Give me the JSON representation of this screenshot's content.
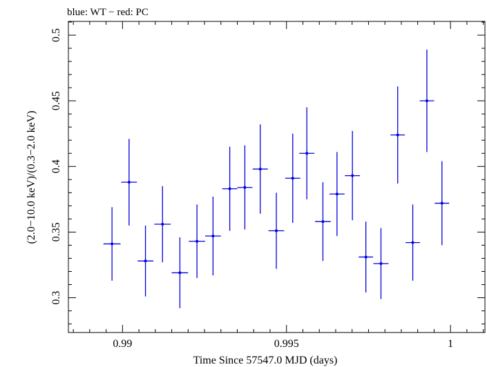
{
  "chart_data": {
    "type": "scatter",
    "title": "blue: WT − red: PC",
    "xlabel": "Time Since 57547.0 MJD (days)",
    "ylabel": "(2.0−10.0 keV)/(0.3−2.0 keV)",
    "xlim": [
      0.98835,
      1.00105
    ],
    "ylim": [
      0.2735,
      0.5105
    ],
    "x_ticks": [
      0.99,
      0.995,
      1
    ],
    "x_tick_labels": [
      "0.99",
      "0.995",
      "1"
    ],
    "y_ticks": [
      0.3,
      0.35,
      0.4,
      0.45,
      0.5
    ],
    "y_tick_labels": [
      "0.3",
      "0.35",
      "0.4",
      "0.45",
      "0.5"
    ],
    "grid": false,
    "series": [
      {
        "name": "WT",
        "color": "#0000dd",
        "points": [
          {
            "x": 0.98968,
            "xerr": 0.00026,
            "y": 0.341,
            "yerr": 0.028
          },
          {
            "x": 0.9902,
            "xerr": 0.00024,
            "y": 0.388,
            "yerr": 0.033
          },
          {
            "x": 0.9907,
            "xerr": 0.00024,
            "y": 0.328,
            "yerr": 0.027
          },
          {
            "x": 0.99122,
            "xerr": 0.00025,
            "y": 0.356,
            "yerr": 0.029
          },
          {
            "x": 0.99175,
            "xerr": 0.00025,
            "y": 0.319,
            "yerr": 0.027
          },
          {
            "x": 0.99227,
            "xerr": 0.00025,
            "y": 0.343,
            "yerr": 0.028
          },
          {
            "x": 0.99276,
            "xerr": 0.00024,
            "y": 0.347,
            "yerr": 0.03
          },
          {
            "x": 0.99327,
            "xerr": 0.00023,
            "y": 0.383,
            "yerr": 0.032
          },
          {
            "x": 0.99373,
            "xerr": 0.00023,
            "y": 0.384,
            "yerr": 0.032
          },
          {
            "x": 0.9942,
            "xerr": 0.00023,
            "y": 0.398,
            "yerr": 0.034
          },
          {
            "x": 0.99469,
            "xerr": 0.00024,
            "y": 0.351,
            "yerr": 0.029
          },
          {
            "x": 0.99519,
            "xerr": 0.00023,
            "y": 0.391,
            "yerr": 0.034
          },
          {
            "x": 0.99562,
            "xerr": 0.00023,
            "y": 0.41,
            "yerr": 0.035
          },
          {
            "x": 0.99611,
            "xerr": 0.00024,
            "y": 0.358,
            "yerr": 0.03
          },
          {
            "x": 0.99654,
            "xerr": 0.00023,
            "y": 0.379,
            "yerr": 0.032
          },
          {
            "x": 0.99701,
            "xerr": 0.00023,
            "y": 0.393,
            "yerr": 0.034
          },
          {
            "x": 0.99742,
            "xerr": 0.00022,
            "y": 0.331,
            "yerr": 0.027
          },
          {
            "x": 0.99788,
            "xerr": 0.00023,
            "y": 0.326,
            "yerr": 0.027
          },
          {
            "x": 0.99839,
            "xerr": 0.00022,
            "y": 0.424,
            "yerr": 0.037
          },
          {
            "x": 0.99885,
            "xerr": 0.00022,
            "y": 0.342,
            "yerr": 0.029
          },
          {
            "x": 0.99928,
            "xerr": 0.00022,
            "y": 0.45,
            "yerr": 0.039
          },
          {
            "x": 0.99974,
            "xerr": 0.00022,
            "y": 0.372,
            "yerr": 0.032
          }
        ]
      }
    ]
  }
}
